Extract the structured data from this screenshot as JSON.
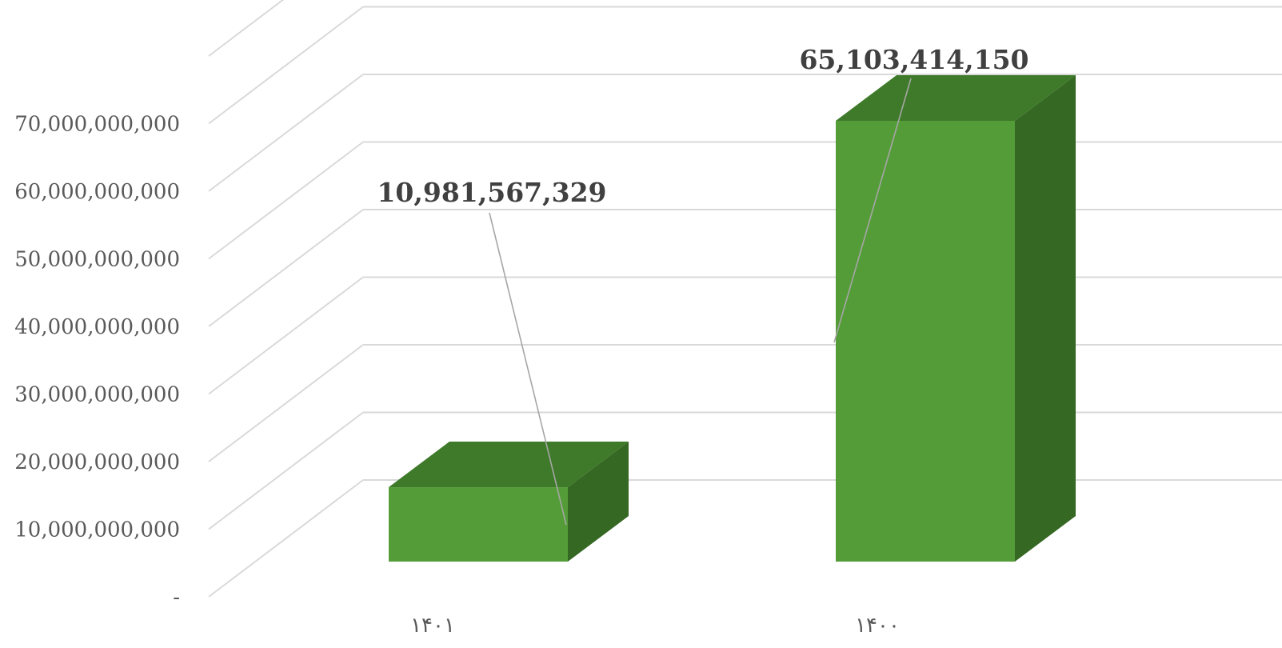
{
  "chart_data": {
    "type": "bar",
    "style": "3d-column",
    "categories": [
      "۱۴۰۱",
      "۱۴۰۰"
    ],
    "series": [
      {
        "values": [
          10981567329,
          65103414150
        ]
      }
    ],
    "data_labels": [
      "10,981,567,329",
      "65,103,414,150"
    ],
    "y_ticks": [
      {
        "value": 0,
        "label": "-"
      },
      {
        "value": 10000000000,
        "label": "10,000,000,000"
      },
      {
        "value": 20000000000,
        "label": "20,000,000,000"
      },
      {
        "value": 30000000000,
        "label": "30,000,000,000"
      },
      {
        "value": 40000000000,
        "label": "40,000,000,000"
      },
      {
        "value": 50000000000,
        "label": "50,000,000,000"
      },
      {
        "value": 60000000000,
        "label": "60,000,000,000"
      },
      {
        "value": 70000000000,
        "label": "70,000,000,000"
      },
      {
        "value": 80000000000,
        "label": ""
      }
    ],
    "ylim": [
      0,
      80000000000
    ],
    "grid": true,
    "legend": "none",
    "colors": {
      "front": "#549c38",
      "top": "#3e7a29",
      "side": "#356823",
      "grid": "#d9d9d9",
      "leader": "#a6a6a6"
    }
  }
}
